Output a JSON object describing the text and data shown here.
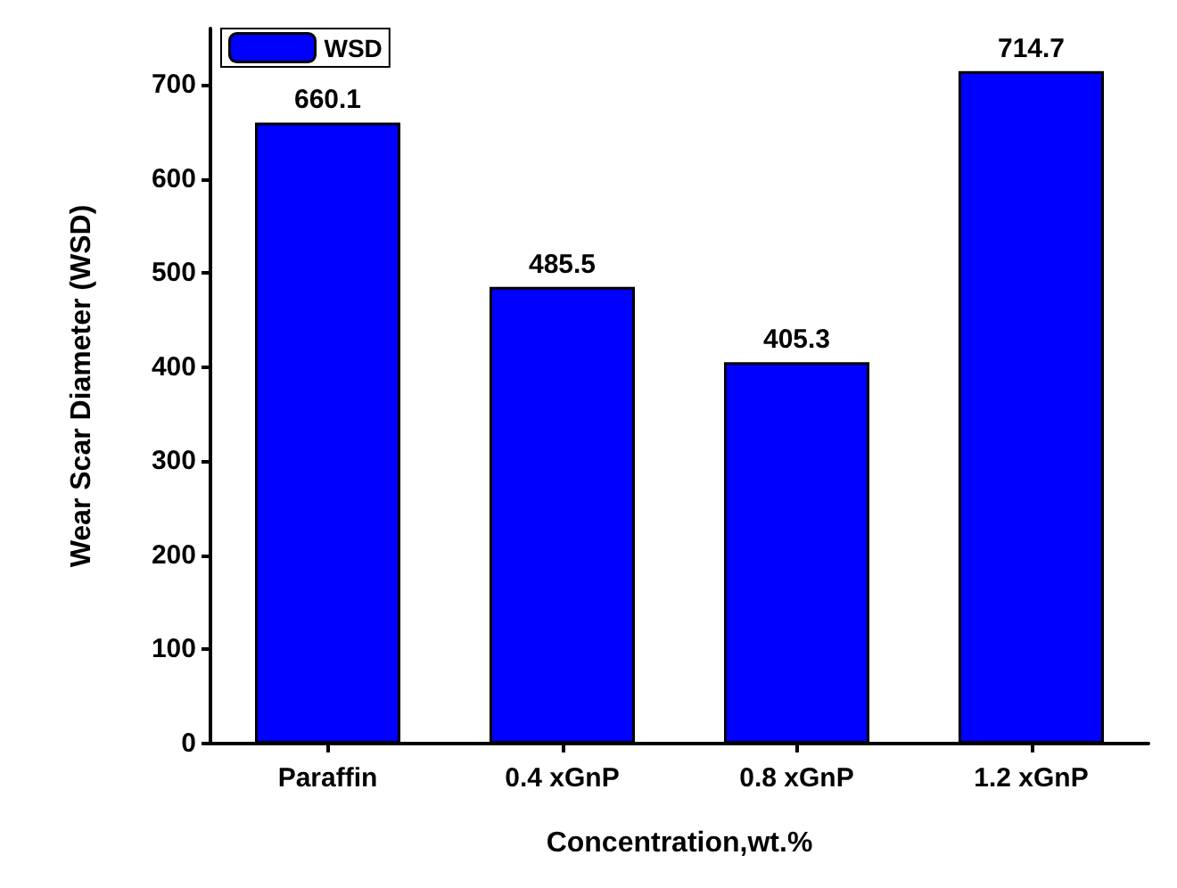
{
  "chart_data": {
    "type": "bar",
    "xlabel": "Concentration,wt.%",
    "ylabel": "Wear Scar Diameter (WSD)",
    "categories": [
      "Paraffin",
      "0.4 xGnP",
      "0.8 xGnP",
      "1.2 xGnP"
    ],
    "series": [
      {
        "name": "WSD",
        "color": "#0000ff",
        "values": [
          660.1,
          485.5,
          405.3,
          714.7
        ]
      }
    ],
    "ylim": [
      0,
      760
    ],
    "yticks": [
      0,
      100,
      200,
      300,
      400,
      500,
      600,
      700
    ],
    "data_labels": true,
    "legend": "top left",
    "grid": false
  }
}
